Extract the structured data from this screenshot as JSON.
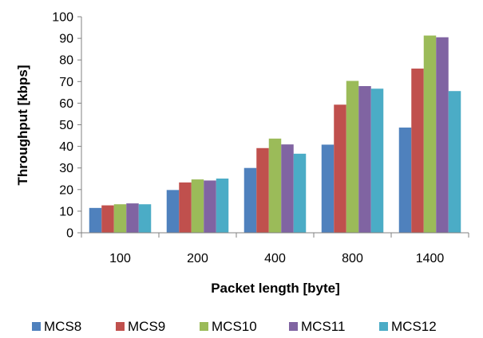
{
  "chart_data": {
    "type": "bar",
    "title": "",
    "xlabel": "Packet length [byte]",
    "ylabel": "Throughput [kbps]",
    "ylim": [
      0,
      100
    ],
    "yticks": [
      0,
      10,
      20,
      30,
      40,
      50,
      60,
      70,
      80,
      90,
      100
    ],
    "grid": false,
    "legend_position": "bottom",
    "categories": [
      "100",
      "200",
      "400",
      "800",
      "1400"
    ],
    "series": [
      {
        "name": "MCS8",
        "color": "#4F81BD",
        "values": [
          11.5,
          19.8,
          30.0,
          40.8,
          48.7
        ]
      },
      {
        "name": "MCS9",
        "color": "#C0504D",
        "values": [
          12.7,
          23.3,
          39.2,
          59.3,
          76.0
        ]
      },
      {
        "name": "MCS10",
        "color": "#9BBB59",
        "values": [
          13.2,
          24.7,
          43.6,
          70.3,
          91.3
        ]
      },
      {
        "name": "MCS11",
        "color": "#8064A2",
        "values": [
          13.6,
          24.2,
          40.9,
          67.9,
          90.5
        ]
      },
      {
        "name": "MCS12",
        "color": "#4BACC6",
        "values": [
          13.2,
          25.1,
          36.6,
          66.7,
          65.6
        ]
      }
    ]
  }
}
